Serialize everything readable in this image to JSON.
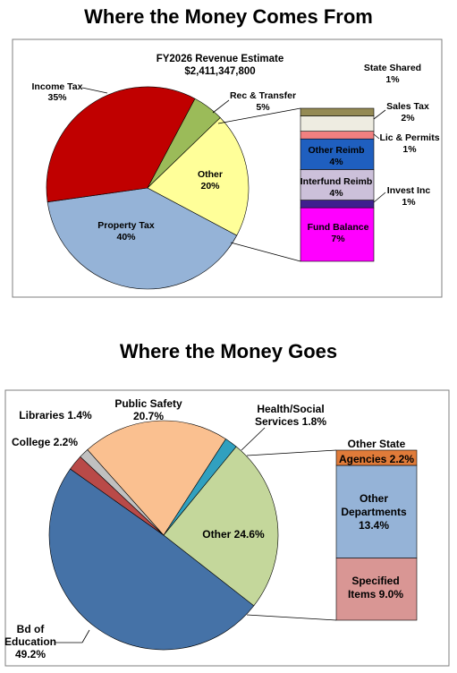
{
  "colors": {
    "panel_border": "#7f7f7f",
    "callout_line": "#000000"
  },
  "chart_data": [
    {
      "type": "pie",
      "title": "Where the Money Comes From",
      "subtitle_line1": "FY2026  Revenue Estimate",
      "subtitle_line2": "$2,411,347,800",
      "unit": "%",
      "legend": "none",
      "slices": [
        {
          "label": "Property Tax",
          "pct_text": "40%",
          "value": 40,
          "color": "#95b3d7"
        },
        {
          "label": "Income Tax",
          "pct_text": "35%",
          "value": 35,
          "color": "#c00000"
        },
        {
          "label": "Rec & Transfer",
          "pct_text": "5%",
          "value": 5,
          "color": "#9bbb59"
        },
        {
          "label": "Other",
          "pct_text": "20%",
          "value": 20,
          "color": "#ffff99"
        }
      ],
      "other_breakdown": [
        {
          "label": "Fund Balance",
          "pct_text": "7%",
          "value": 7,
          "color": "#ff00ff"
        },
        {
          "label": "Invest Inc",
          "pct_text": "1%",
          "value": 1,
          "color": "#3f1f8f"
        },
        {
          "label": "Interfund Reimb",
          "pct_text": "4%",
          "value": 4,
          "color": "#ccc0da"
        },
        {
          "label": "Other Reimb",
          "pct_text": "4%",
          "value": 4,
          "color": "#1f5fbf"
        },
        {
          "label": "Lic & Permits",
          "pct_text": "1%",
          "value": 1,
          "color": "#f08080"
        },
        {
          "label": "Sales Tax",
          "pct_text": "2%",
          "value": 2,
          "color": "#eeece1"
        },
        {
          "label": "State Shared",
          "pct_text": "1%",
          "value": 1,
          "color": "#948a54"
        }
      ]
    },
    {
      "type": "pie",
      "title": "Where the Money Goes",
      "unit": "%",
      "legend": "none",
      "slices": [
        {
          "label": "Bd of Education",
          "pct_text": "49.2%",
          "value": 49.2,
          "color": "#4572a7"
        },
        {
          "label": "College",
          "pct_text": "2.2%",
          "value": 2.2,
          "color": "#b94a48"
        },
        {
          "label": "Libraries",
          "pct_text": "1.4%",
          "value": 1.4,
          "color": "#c0c0c0"
        },
        {
          "label": "Public Safety",
          "pct_text": "20.7%",
          "value": 20.7,
          "color": "#fac090"
        },
        {
          "label": "Health/Social Services",
          "pct_text": "1.8%",
          "value": 1.8,
          "color": "#31a0bf"
        },
        {
          "label": "Other",
          "pct_text": "24.6%",
          "value": 24.6,
          "color": "#c4d79b"
        }
      ],
      "other_breakdown": [
        {
          "label": "Specified Items",
          "pct_text": "9.0%",
          "value": 9.0,
          "color": "#d99694"
        },
        {
          "label": "Other Departments",
          "pct_text": "13.4%",
          "value": 13.4,
          "color": "#95b3d7"
        },
        {
          "label": "Other State Agencies",
          "pct_text": "2.2%",
          "value": 2.2,
          "color": "#e07b39"
        }
      ]
    }
  ]
}
